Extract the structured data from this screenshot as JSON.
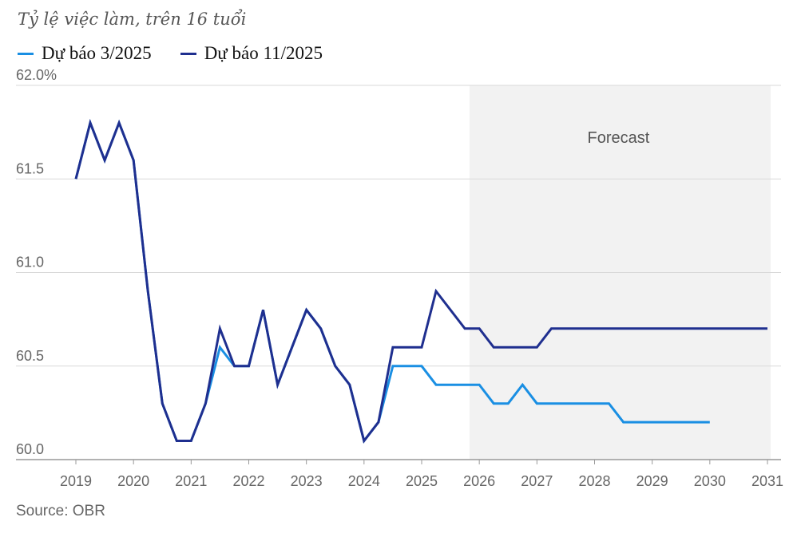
{
  "subtitle": "Tỷ lệ việc làm, trên 16 tuổi",
  "source": "Source: OBR",
  "chart_data": {
    "type": "line",
    "title": "",
    "xlabel": "",
    "ylabel": "",
    "xlim": [
      2019,
      2031
    ],
    "ylim": [
      60.0,
      62.0
    ],
    "y_ticks": [
      60.0,
      60.5,
      61.0,
      61.5,
      62.0
    ],
    "y_tick_labels": [
      "60.0",
      "60.5",
      "61.0",
      "61.5",
      "62.0%"
    ],
    "x_ticks": [
      2019,
      2020,
      2021,
      2022,
      2023,
      2024,
      2025,
      2026,
      2027,
      2028,
      2029,
      2030,
      2031
    ],
    "x_tick_labels": [
      "2019",
      "2020",
      "2021",
      "2022",
      "2023",
      "2024",
      "2025",
      "2026",
      "2027",
      "2028",
      "2029",
      "2030",
      "2031"
    ],
    "grid": true,
    "forecast_region": {
      "start": 2025.83,
      "end": 2031,
      "label": "Forecast",
      "color": "#f2f2f2"
    },
    "series": [
      {
        "name": "Dự báo 3/2025",
        "color": "#1a8fe3",
        "x": [
          2019.0,
          2019.25,
          2019.5,
          2019.75,
          2020.0,
          2020.25,
          2020.5,
          2020.75,
          2021.0,
          2021.25,
          2021.5,
          2021.75,
          2022.0,
          2022.25,
          2022.5,
          2022.75,
          2023.0,
          2023.25,
          2023.5,
          2023.75,
          2024.0,
          2024.25,
          2024.5,
          2024.75,
          2025.0,
          2025.25,
          2025.5,
          2025.75,
          2026.0,
          2026.25,
          2026.5,
          2026.75,
          2027.0,
          2027.25,
          2027.5,
          2027.75,
          2028.0,
          2028.25,
          2028.5,
          2028.75,
          2029.0,
          2029.25,
          2029.5,
          2029.75,
          2030.0
        ],
        "values": [
          61.5,
          61.8,
          61.6,
          61.8,
          61.6,
          60.9,
          60.3,
          60.1,
          60.1,
          60.3,
          60.6,
          60.5,
          60.5,
          60.8,
          60.4,
          60.6,
          60.8,
          60.7,
          60.5,
          60.4,
          60.1,
          60.2,
          60.5,
          60.5,
          60.5,
          60.4,
          60.4,
          60.4,
          60.4,
          60.3,
          60.3,
          60.4,
          60.3,
          60.3,
          60.3,
          60.3,
          60.3,
          60.3,
          60.2,
          60.2,
          60.2,
          60.2,
          60.2,
          60.2,
          60.2
        ]
      },
      {
        "name": "Dự báo 11/2025",
        "color": "#1f2f8f",
        "x": [
          2019.0,
          2019.25,
          2019.5,
          2019.75,
          2020.0,
          2020.25,
          2020.5,
          2020.75,
          2021.0,
          2021.25,
          2021.5,
          2021.75,
          2022.0,
          2022.25,
          2022.5,
          2022.75,
          2023.0,
          2023.25,
          2023.5,
          2023.75,
          2024.0,
          2024.25,
          2024.5,
          2024.75,
          2025.0,
          2025.25,
          2025.5,
          2025.75,
          2026.0,
          2026.25,
          2026.5,
          2026.75,
          2027.0,
          2027.25,
          2027.5,
          2027.75,
          2028.0,
          2028.25,
          2028.5,
          2028.75,
          2029.0,
          2029.25,
          2029.5,
          2029.75,
          2030.0,
          2030.25,
          2030.5,
          2030.75,
          2031.0
        ],
        "values": [
          61.5,
          61.8,
          61.6,
          61.8,
          61.6,
          60.9,
          60.3,
          60.1,
          60.1,
          60.3,
          60.7,
          60.5,
          60.5,
          60.8,
          60.4,
          60.6,
          60.8,
          60.7,
          60.5,
          60.4,
          60.1,
          60.2,
          60.6,
          60.6,
          60.6,
          60.9,
          60.8,
          60.7,
          60.7,
          60.6,
          60.6,
          60.6,
          60.6,
          60.7,
          60.7,
          60.7,
          60.7,
          60.7,
          60.7,
          60.7,
          60.7,
          60.7,
          60.7,
          60.7,
          60.7,
          60.7,
          60.7,
          60.7,
          60.7
        ]
      }
    ]
  }
}
